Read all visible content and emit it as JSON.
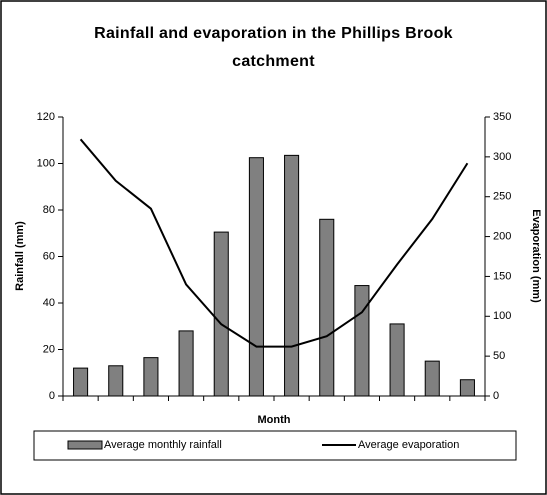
{
  "chart_data": {
    "type": "bar",
    "title": "Rainfall and evaporation in the Phillips Brook catchment",
    "xlabel": "Month",
    "ylabel": "Rainfall (mm)",
    "y2label": "Evaporation (mm)",
    "categories": [
      null,
      null,
      null,
      null,
      null,
      null,
      null,
      null,
      null,
      null,
      null,
      null
    ],
    "series": [
      {
        "name": "Average monthly rainfall",
        "type": "bar",
        "color": "#808080",
        "values": [
          12,
          13,
          16.5,
          28,
          70.5,
          102.5,
          103.5,
          76,
          47.5,
          31,
          15,
          7
        ]
      },
      {
        "name": "Average evaporation",
        "type": "line",
        "color": "#000000",
        "axis": "y2",
        "values": [
          322,
          270,
          235,
          140,
          90,
          62,
          62,
          75,
          105,
          165,
          222,
          292
        ]
      }
    ],
    "ylim": [
      0,
      120
    ],
    "yticks": [
      0,
      20,
      40,
      60,
      80,
      100,
      120
    ],
    "y2lim": [
      0,
      350
    ],
    "y2ticks": [
      0,
      50,
      100,
      150,
      200,
      250,
      300,
      350
    ],
    "legend": "bottom"
  }
}
